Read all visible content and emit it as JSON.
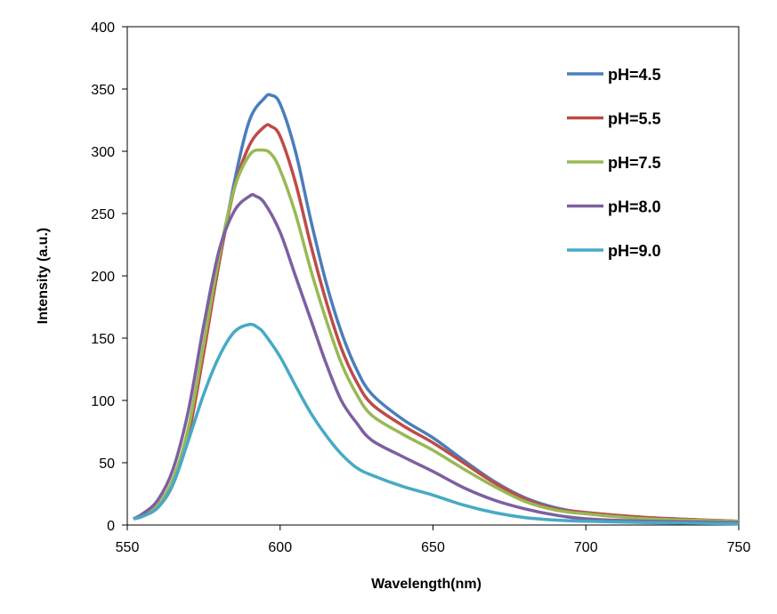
{
  "chart_data": {
    "type": "line",
    "title": "",
    "xlabel": "Wavelength(nm)",
    "ylabel": "Intensity  (a.u.)",
    "xlim": [
      550,
      750
    ],
    "ylim": [
      0,
      400
    ],
    "xticks": [
      550,
      600,
      650,
      700,
      750
    ],
    "yticks": [
      0,
      50,
      100,
      150,
      200,
      250,
      300,
      350,
      400
    ],
    "grid": false,
    "legend_position": "top-right",
    "series": [
      {
        "name": "pH=4.5",
        "color": "#4a7ebb",
        "x": [
          552,
          555,
          560,
          565,
          570,
          575,
          580,
          585,
          590,
          595,
          597,
          600,
          605,
          610,
          615,
          620,
          625,
          630,
          640,
          650,
          660,
          670,
          680,
          690,
          700,
          720,
          750
        ],
        "y": [
          5,
          7,
          15,
          35,
          75,
          140,
          210,
          275,
          325,
          343,
          345,
          338,
          300,
          245,
          195,
          155,
          125,
          105,
          85,
          70,
          52,
          35,
          22,
          14,
          10,
          6,
          3
        ]
      },
      {
        "name": "pH=5.5",
        "color": "#be4b48",
        "x": [
          552,
          555,
          560,
          565,
          570,
          575,
          580,
          585,
          590,
          595,
          597,
          600,
          605,
          610,
          615,
          620,
          625,
          630,
          640,
          650,
          660,
          670,
          680,
          690,
          700,
          720,
          750
        ],
        "y": [
          5,
          7,
          14,
          33,
          72,
          138,
          210,
          270,
          305,
          320,
          320,
          312,
          275,
          225,
          180,
          142,
          115,
          97,
          80,
          66,
          50,
          34,
          21,
          13,
          10,
          6,
          3
        ]
      },
      {
        "name": "pH=7.5",
        "color": "#98b954",
        "x": [
          552,
          555,
          560,
          565,
          570,
          575,
          580,
          585,
          590,
          594,
          597,
          600,
          605,
          610,
          615,
          620,
          625,
          630,
          640,
          650,
          660,
          670,
          680,
          690,
          700,
          720,
          750
        ],
        "y": [
          5,
          8,
          16,
          37,
          78,
          145,
          215,
          270,
          297,
          301,
          298,
          285,
          250,
          205,
          165,
          130,
          105,
          88,
          73,
          60,
          45,
          31,
          19,
          12,
          9,
          5,
          3
        ]
      },
      {
        "name": "pH=8.0",
        "color": "#7d60a0",
        "x": [
          552,
          555,
          560,
          565,
          570,
          575,
          580,
          585,
          590,
          592,
          595,
          600,
          605,
          610,
          615,
          620,
          625,
          630,
          640,
          650,
          660,
          670,
          680,
          690,
          700,
          720,
          750
        ],
        "y": [
          5,
          9,
          20,
          45,
          92,
          160,
          220,
          252,
          264,
          264,
          258,
          235,
          200,
          165,
          130,
          100,
          82,
          68,
          55,
          43,
          30,
          20,
          13,
          8,
          5,
          3,
          2
        ]
      },
      {
        "name": "pH=9.0",
        "color": "#46aac5",
        "x": [
          552,
          555,
          560,
          565,
          570,
          575,
          580,
          585,
          590,
          593,
          595,
          600,
          605,
          610,
          615,
          620,
          625,
          630,
          640,
          650,
          660,
          670,
          680,
          690,
          700,
          720,
          750
        ],
        "y": [
          5,
          7,
          14,
          33,
          68,
          105,
          135,
          155,
          161,
          158,
          153,
          135,
          112,
          90,
          72,
          57,
          46,
          40,
          31,
          24,
          16,
          10,
          6,
          4,
          3,
          2,
          1
        ]
      }
    ]
  }
}
